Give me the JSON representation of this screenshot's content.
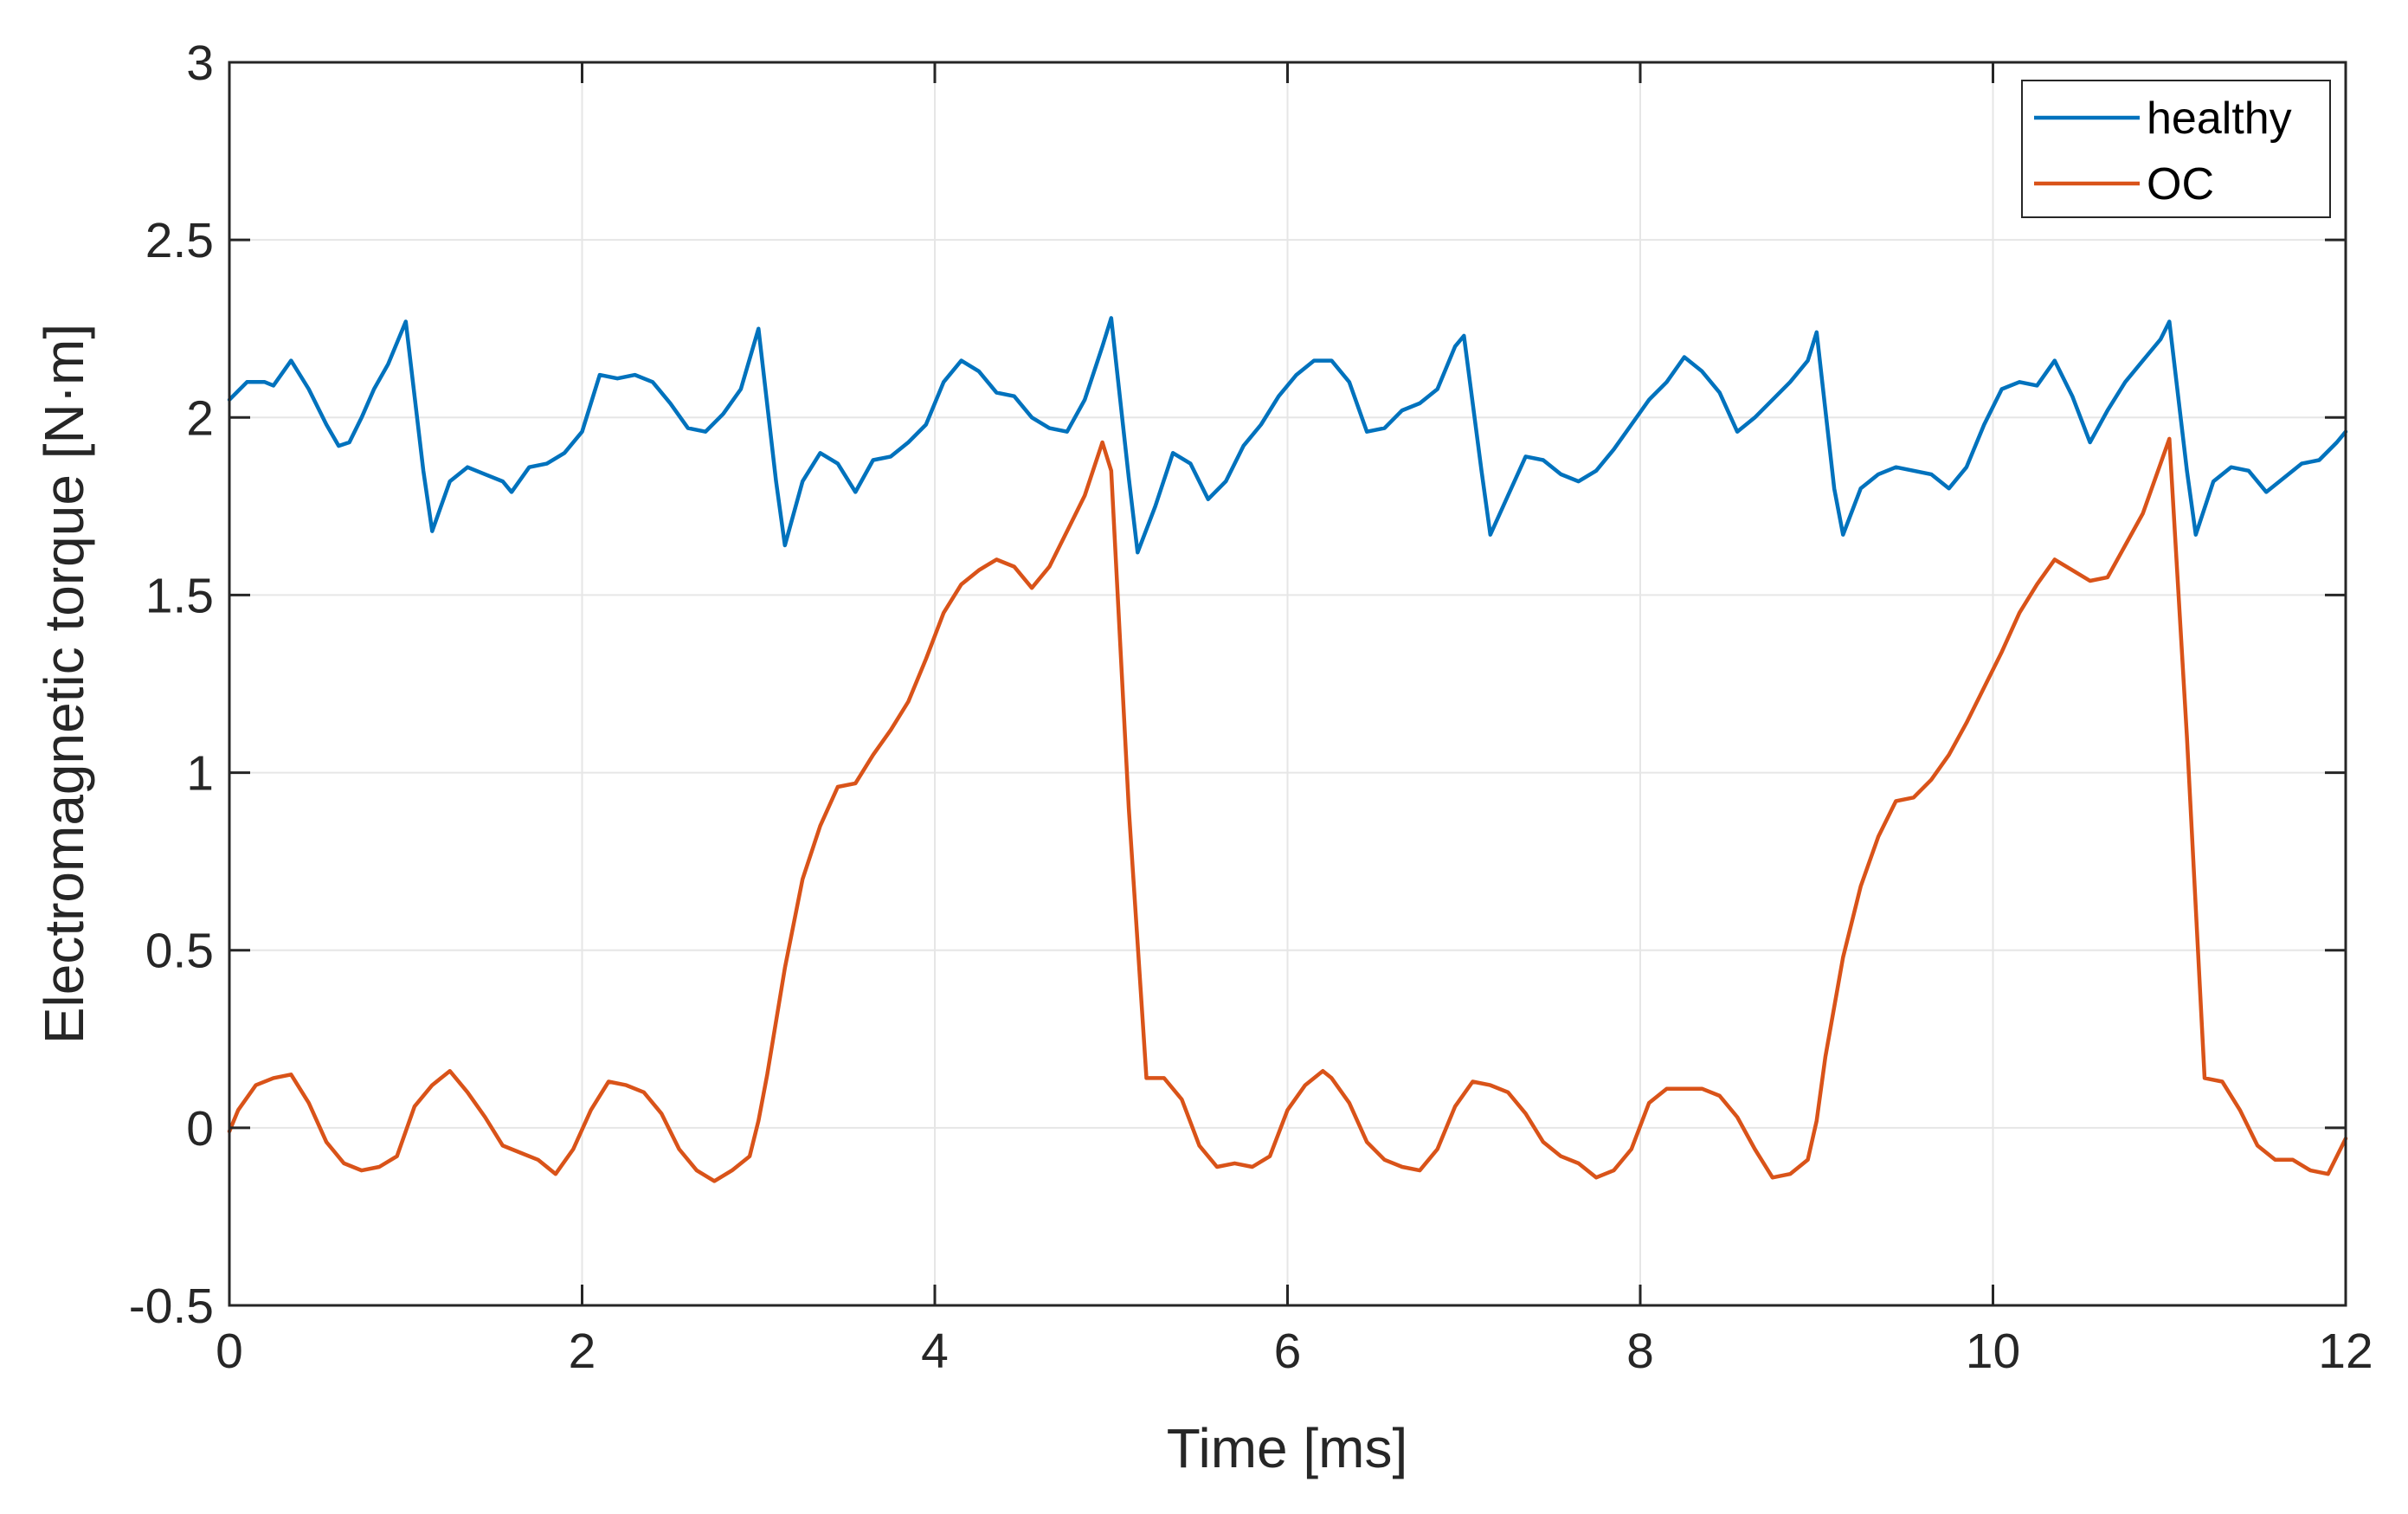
{
  "chart_data": {
    "type": "line",
    "xlabel": "Time  [ms]",
    "ylabel": "Electromagnetic torque [N·m]",
    "xlim": [
      0,
      12
    ],
    "ylim": [
      -0.5,
      3
    ],
    "xticks": [
      "0",
      "2",
      "4",
      "6",
      "8",
      "10",
      "12"
    ],
    "yticks": [
      "-0.5",
      "0",
      "0.5",
      "1",
      "1.5",
      "2",
      "2.5",
      "3"
    ],
    "grid": true,
    "legend_position": "top-right",
    "series": [
      {
        "name": "healthy",
        "color": "#0072BD",
        "x": [
          0,
          0.1,
          0.2,
          0.25,
          0.35,
          0.45,
          0.55,
          0.62,
          0.68,
          0.75,
          0.82,
          0.9,
          1.0,
          1.1,
          1.15,
          1.25,
          1.35,
          1.45,
          1.55,
          1.6,
          1.7,
          1.8,
          1.9,
          2.0,
          2.1,
          2.2,
          2.3,
          2.4,
          2.5,
          2.6,
          2.7,
          2.8,
          2.9,
          3.0,
          3.1,
          3.15,
          3.25,
          3.35,
          3.45,
          3.55,
          3.65,
          3.75,
          3.85,
          3.95,
          4.05,
          4.15,
          4.25,
          4.35,
          4.45,
          4.55,
          4.65,
          4.75,
          4.85,
          4.95,
          5.0,
          5.1,
          5.15,
          5.25,
          5.35,
          5.45,
          5.55,
          5.65,
          5.75,
          5.85,
          5.95,
          6.05,
          6.15,
          6.25,
          6.35,
          6.45,
          6.55,
          6.65,
          6.75,
          6.85,
          6.95,
          7.0,
          7.1,
          7.15,
          7.25,
          7.35,
          7.45,
          7.55,
          7.65,
          7.75,
          7.85,
          7.95,
          8.05,
          8.15,
          8.25,
          8.35,
          8.45,
          8.55,
          8.65,
          8.75,
          8.85,
          8.95,
          9.0,
          9.1,
          9.15,
          9.25,
          9.35,
          9.45,
          9.55,
          9.65,
          9.75,
          9.85,
          9.95,
          10.05,
          10.15,
          10.25,
          10.35,
          10.45,
          10.55,
          10.65,
          10.75,
          10.85,
          10.95,
          11.0,
          11.1,
          11.15,
          11.25,
          11.35,
          11.45,
          11.55,
          11.65,
          11.75,
          11.85,
          11.95,
          12.0
        ],
        "y": [
          2.05,
          2.1,
          2.1,
          2.09,
          2.16,
          2.08,
          1.98,
          1.92,
          1.93,
          2.0,
          2.08,
          2.15,
          2.27,
          1.85,
          1.68,
          1.82,
          1.86,
          1.84,
          1.82,
          1.79,
          1.86,
          1.87,
          1.9,
          1.96,
          2.12,
          2.11,
          2.12,
          2.1,
          2.04,
          1.97,
          1.96,
          2.01,
          2.08,
          2.25,
          1.82,
          1.64,
          1.82,
          1.9,
          1.87,
          1.79,
          1.88,
          1.89,
          1.93,
          1.98,
          2.1,
          2.16,
          2.13,
          2.07,
          2.06,
          2.0,
          1.97,
          1.96,
          2.05,
          2.2,
          2.28,
          1.83,
          1.62,
          1.75,
          1.9,
          1.87,
          1.77,
          1.82,
          1.92,
          1.98,
          2.06,
          2.12,
          2.16,
          2.16,
          2.1,
          1.96,
          1.97,
          2.02,
          2.04,
          2.08,
          2.2,
          2.23,
          1.85,
          1.67,
          1.78,
          1.89,
          1.88,
          1.84,
          1.82,
          1.85,
          1.91,
          1.98,
          2.05,
          2.1,
          2.17,
          2.13,
          2.07,
          1.96,
          2.0,
          2.05,
          2.1,
          2.16,
          2.24,
          1.8,
          1.67,
          1.8,
          1.84,
          1.86,
          1.85,
          1.84,
          1.8,
          1.86,
          1.98,
          2.08,
          2.1,
          2.09,
          2.16,
          2.06,
          1.93,
          2.02,
          2.1,
          2.16,
          2.22,
          2.27,
          1.85,
          1.67,
          1.82,
          1.86,
          1.85,
          1.79,
          1.83,
          1.87,
          1.88,
          1.93,
          1.96
        ]
      },
      {
        "name": "OC",
        "color": "#D95319",
        "x": [
          0,
          0.05,
          0.15,
          0.25,
          0.35,
          0.45,
          0.55,
          0.65,
          0.75,
          0.85,
          0.95,
          1.05,
          1.15,
          1.25,
          1.35,
          1.45,
          1.55,
          1.65,
          1.75,
          1.85,
          1.95,
          2.05,
          2.15,
          2.25,
          2.35,
          2.45,
          2.55,
          2.65,
          2.75,
          2.85,
          2.95,
          3.0,
          3.05,
          3.15,
          3.25,
          3.35,
          3.45,
          3.55,
          3.65,
          3.75,
          3.85,
          3.95,
          4.05,
          4.15,
          4.25,
          4.35,
          4.45,
          4.55,
          4.65,
          4.75,
          4.85,
          4.95,
          5.0,
          5.1,
          5.2,
          5.3,
          5.4,
          5.5,
          5.6,
          5.7,
          5.8,
          5.9,
          6.0,
          6.1,
          6.2,
          6.25,
          6.35,
          6.45,
          6.55,
          6.65,
          6.75,
          6.85,
          6.95,
          7.05,
          7.15,
          7.25,
          7.35,
          7.45,
          7.55,
          7.65,
          7.75,
          7.85,
          7.95,
          8.05,
          8.15,
          8.25,
          8.35,
          8.45,
          8.55,
          8.65,
          8.75,
          8.85,
          8.95,
          9.0,
          9.05,
          9.15,
          9.25,
          9.35,
          9.45,
          9.55,
          9.65,
          9.75,
          9.85,
          9.95,
          10.05,
          10.15,
          10.25,
          10.35,
          10.45,
          10.55,
          10.65,
          10.75,
          10.85,
          10.95,
          11.0,
          11.1,
          11.2,
          11.3,
          11.4,
          11.5,
          11.6,
          11.7,
          11.8,
          11.9,
          12.0
        ],
        "y": [
          -0.01,
          0.05,
          0.12,
          0.14,
          0.15,
          0.07,
          -0.04,
          -0.1,
          -0.12,
          -0.11,
          -0.08,
          0.06,
          0.12,
          0.16,
          0.1,
          0.03,
          -0.05,
          -0.07,
          -0.09,
          -0.13,
          -0.06,
          0.05,
          0.13,
          0.12,
          0.1,
          0.04,
          -0.06,
          -0.12,
          -0.15,
          -0.12,
          -0.08,
          0.02,
          0.15,
          0.45,
          0.7,
          0.85,
          0.96,
          0.97,
          1.05,
          1.12,
          1.2,
          1.32,
          1.45,
          1.53,
          1.57,
          1.6,
          1.58,
          1.52,
          1.58,
          1.68,
          1.78,
          1.93,
          1.85,
          0.9,
          0.14,
          0.14,
          0.08,
          -0.05,
          -0.11,
          -0.1,
          -0.11,
          -0.08,
          0.05,
          0.12,
          0.16,
          0.14,
          0.07,
          -0.04,
          -0.09,
          -0.11,
          -0.12,
          -0.06,
          0.06,
          0.13,
          0.12,
          0.1,
          0.04,
          -0.04,
          -0.08,
          -0.1,
          -0.14,
          -0.12,
          -0.06,
          0.07,
          0.11,
          0.11,
          0.11,
          0.09,
          0.03,
          -0.06,
          -0.14,
          -0.13,
          -0.09,
          0.02,
          0.2,
          0.48,
          0.68,
          0.82,
          0.92,
          0.93,
          0.98,
          1.05,
          1.14,
          1.24,
          1.34,
          1.45,
          1.53,
          1.6,
          1.57,
          1.54,
          1.55,
          1.64,
          1.73,
          1.87,
          1.94,
          1.1,
          0.14,
          0.13,
          0.05,
          -0.05,
          -0.09,
          -0.09,
          -0.12,
          -0.13,
          -0.03
        ]
      }
    ]
  }
}
